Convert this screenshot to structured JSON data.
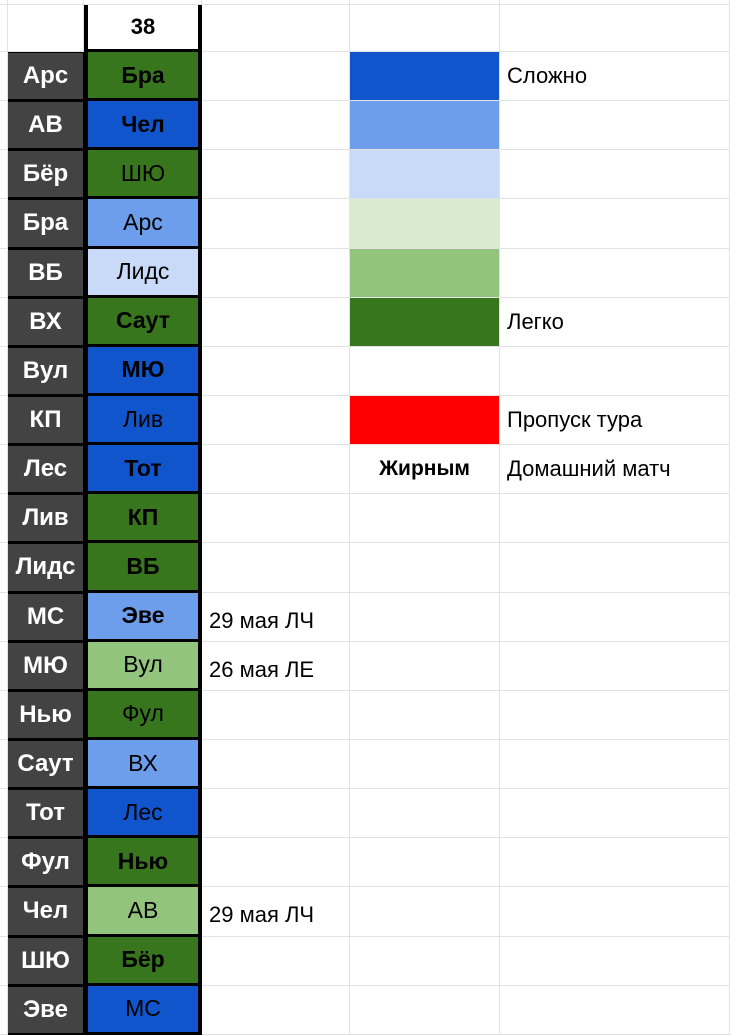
{
  "round": "38",
  "colors": {
    "hard": "#1155cc",
    "hard2": "#6d9eeb",
    "mid_hard": "#c9daf8",
    "mid_easy": "#d9ead3",
    "easy2": "#93c47d",
    "easy": "#38761d",
    "skip": "#ff0000",
    "team_bg": "#434343"
  },
  "rows": [
    {
      "team": "Арс",
      "opponent": "Бра",
      "level": "easy",
      "home": true,
      "note": ""
    },
    {
      "team": "АВ",
      "opponent": "Чел",
      "level": "hard",
      "home": true,
      "note": ""
    },
    {
      "team": "Бёр",
      "opponent": "ШЮ",
      "level": "easy",
      "home": false,
      "note": ""
    },
    {
      "team": "Бра",
      "opponent": "Арс",
      "level": "hard2",
      "home": false,
      "note": ""
    },
    {
      "team": "ВБ",
      "opponent": "Лидс",
      "level": "mid_hard",
      "home": false,
      "note": ""
    },
    {
      "team": "ВХ",
      "opponent": "Саут",
      "level": "easy",
      "home": true,
      "note": ""
    },
    {
      "team": "Вул",
      "opponent": "МЮ",
      "level": "hard",
      "home": true,
      "note": ""
    },
    {
      "team": "КП",
      "opponent": "Лив",
      "level": "hard",
      "home": false,
      "note": ""
    },
    {
      "team": "Лес",
      "opponent": "Тот",
      "level": "hard",
      "home": true,
      "note": ""
    },
    {
      "team": "Лив",
      "opponent": "КП",
      "level": "easy",
      "home": true,
      "note": ""
    },
    {
      "team": "Лидс",
      "opponent": "ВБ",
      "level": "easy",
      "home": true,
      "note": ""
    },
    {
      "team": "МС",
      "opponent": "Эве",
      "level": "hard2",
      "home": true,
      "note": "29 мая ЛЧ"
    },
    {
      "team": "МЮ",
      "opponent": "Вул",
      "level": "easy2",
      "home": false,
      "note": "26 мая ЛЕ"
    },
    {
      "team": "Нью",
      "opponent": "Фул",
      "level": "easy",
      "home": false,
      "note": ""
    },
    {
      "team": "Саут",
      "opponent": "ВХ",
      "level": "hard2",
      "home": false,
      "note": ""
    },
    {
      "team": "Тот",
      "opponent": "Лес",
      "level": "hard",
      "home": false,
      "note": ""
    },
    {
      "team": "Фул",
      "opponent": "Нью",
      "level": "easy",
      "home": true,
      "note": ""
    },
    {
      "team": "Чел",
      "opponent": "АВ",
      "level": "easy2",
      "home": false,
      "note": "29 мая ЛЧ"
    },
    {
      "team": "ШЮ",
      "opponent": "Бёр",
      "level": "easy",
      "home": true,
      "note": ""
    },
    {
      "team": "Эве",
      "opponent": "МС",
      "level": "hard",
      "home": false,
      "note": ""
    }
  ],
  "legend": [
    {
      "color": "#1155cc",
      "label": "Сложно"
    },
    {
      "color": "#6d9eeb",
      "label": ""
    },
    {
      "color": "#c9daf8",
      "label": ""
    },
    {
      "color": "#d9ead3",
      "label": ""
    },
    {
      "color": "#93c47d",
      "label": ""
    },
    {
      "color": "#38761d",
      "label": "Легко"
    },
    {
      "color": "",
      "label": ""
    },
    {
      "color": "#ff0000",
      "label": "Пропуск тура"
    },
    {
      "color": "",
      "label": "Домашний матч",
      "sample": "Жирным"
    }
  ]
}
